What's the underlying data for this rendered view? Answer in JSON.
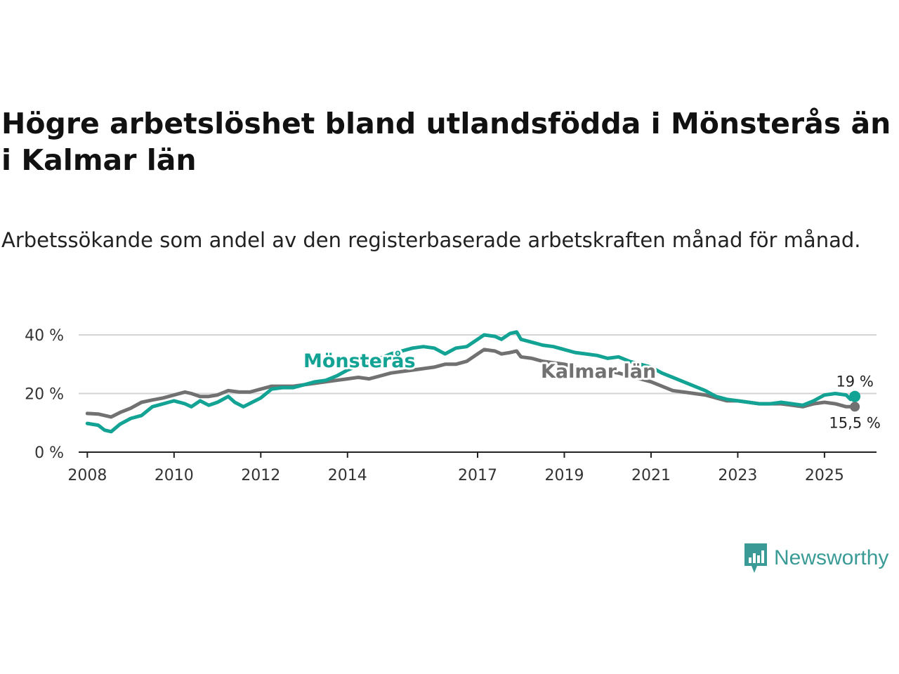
{
  "title": "Högre arbetslöshet bland utlandsfödda i Mönsterås än i Kalmar län",
  "subtitle": "Arbetssökande som andel av den registerbaserade arbetskraften månad för månad.",
  "brand": {
    "name": "Newsworthy",
    "color": "#3a9b96"
  },
  "chart_data": {
    "type": "line",
    "title": "Högre arbetslöshet bland utlandsfödda i Mönsterås än i Kalmar län",
    "xlabel": "",
    "ylabel": "",
    "xlim": [
      2007.8,
      2026.2
    ],
    "ylim": [
      0,
      40
    ],
    "yticks": [
      0,
      20,
      40
    ],
    "ytick_labels": [
      "0 %",
      "20 %",
      "40 %"
    ],
    "xticks": [
      2008,
      2010,
      2012,
      2014,
      2017,
      2019,
      2021,
      2023,
      2025
    ],
    "xtick_labels": [
      "2008",
      "2010",
      "2012",
      "2014",
      "2017",
      "2019",
      "2021",
      "2023",
      "2025"
    ],
    "grid": true,
    "series": [
      {
        "name": "Mönsterås",
        "color": "#13a394",
        "end_label": "19 %",
        "points": [
          [
            2008.0,
            9.8
          ],
          [
            2008.25,
            9.2
          ],
          [
            2008.4,
            7.5
          ],
          [
            2008.55,
            7.0
          ],
          [
            2008.75,
            9.5
          ],
          [
            2009.0,
            11.5
          ],
          [
            2009.25,
            12.5
          ],
          [
            2009.5,
            15.5
          ],
          [
            2009.75,
            16.5
          ],
          [
            2010.0,
            17.5
          ],
          [
            2010.25,
            16.5
          ],
          [
            2010.4,
            15.5
          ],
          [
            2010.6,
            17.5
          ],
          [
            2010.8,
            16.0
          ],
          [
            2011.0,
            17.0
          ],
          [
            2011.25,
            19.0
          ],
          [
            2011.4,
            17.0
          ],
          [
            2011.6,
            15.5
          ],
          [
            2011.8,
            17.0
          ],
          [
            2012.0,
            18.5
          ],
          [
            2012.25,
            21.5
          ],
          [
            2012.5,
            22.0
          ],
          [
            2012.75,
            22.0
          ],
          [
            2013.0,
            23.0
          ],
          [
            2013.25,
            24.0
          ],
          [
            2013.5,
            24.5
          ],
          [
            2013.75,
            26.0
          ],
          [
            2014.0,
            28.0
          ],
          [
            2014.25,
            29.5
          ],
          [
            2014.5,
            30.5
          ],
          [
            2014.75,
            32.0
          ],
          [
            2015.0,
            33.5
          ],
          [
            2015.25,
            34.5
          ],
          [
            2015.5,
            35.5
          ],
          [
            2015.75,
            36.0
          ],
          [
            2016.0,
            35.5
          ],
          [
            2016.25,
            33.5
          ],
          [
            2016.5,
            35.5
          ],
          [
            2016.75,
            36.0
          ],
          [
            2017.0,
            38.5
          ],
          [
            2017.15,
            40.0
          ],
          [
            2017.4,
            39.5
          ],
          [
            2017.55,
            38.5
          ],
          [
            2017.75,
            40.5
          ],
          [
            2017.9,
            41.0
          ],
          [
            2018.0,
            38.5
          ],
          [
            2018.25,
            37.5
          ],
          [
            2018.5,
            36.5
          ],
          [
            2018.75,
            36.0
          ],
          [
            2019.0,
            35.0
          ],
          [
            2019.25,
            34.0
          ],
          [
            2019.5,
            33.5
          ],
          [
            2019.75,
            33.0
          ],
          [
            2020.0,
            32.0
          ],
          [
            2020.25,
            32.5
          ],
          [
            2020.5,
            31.0
          ],
          [
            2020.75,
            30.0
          ],
          [
            2021.0,
            29.0
          ],
          [
            2021.25,
            27.0
          ],
          [
            2021.5,
            25.5
          ],
          [
            2021.75,
            24.0
          ],
          [
            2022.0,
            22.5
          ],
          [
            2022.25,
            21.0
          ],
          [
            2022.5,
            19.0
          ],
          [
            2022.75,
            18.0
          ],
          [
            2023.0,
            17.5
          ],
          [
            2023.25,
            17.0
          ],
          [
            2023.5,
            16.5
          ],
          [
            2023.75,
            16.5
          ],
          [
            2024.0,
            17.0
          ],
          [
            2024.25,
            16.5
          ],
          [
            2024.5,
            16.0
          ],
          [
            2024.75,
            17.5
          ],
          [
            2025.0,
            19.5
          ],
          [
            2025.25,
            20.0
          ],
          [
            2025.5,
            19.5
          ],
          [
            2025.6,
            18.0
          ],
          [
            2025.7,
            19.0
          ]
        ]
      },
      {
        "name": "Kalmar län",
        "color": "#717171",
        "end_label": "15,5 %",
        "points": [
          [
            2008.0,
            13.2
          ],
          [
            2008.25,
            13.0
          ],
          [
            2008.4,
            12.5
          ],
          [
            2008.55,
            12.0
          ],
          [
            2008.75,
            13.5
          ],
          [
            2009.0,
            15.0
          ],
          [
            2009.25,
            17.0
          ],
          [
            2009.5,
            17.8
          ],
          [
            2009.75,
            18.5
          ],
          [
            2010.0,
            19.5
          ],
          [
            2010.25,
            20.5
          ],
          [
            2010.4,
            20.0
          ],
          [
            2010.6,
            19.0
          ],
          [
            2010.8,
            19.0
          ],
          [
            2011.0,
            19.5
          ],
          [
            2011.25,
            21.0
          ],
          [
            2011.5,
            20.5
          ],
          [
            2011.75,
            20.5
          ],
          [
            2012.0,
            21.5
          ],
          [
            2012.25,
            22.5
          ],
          [
            2012.5,
            22.5
          ],
          [
            2012.75,
            22.5
          ],
          [
            2013.0,
            23.0
          ],
          [
            2013.25,
            23.5
          ],
          [
            2013.5,
            24.0
          ],
          [
            2013.75,
            24.5
          ],
          [
            2014.0,
            25.0
          ],
          [
            2014.25,
            25.5
          ],
          [
            2014.5,
            25.0
          ],
          [
            2014.75,
            26.0
          ],
          [
            2015.0,
            27.0
          ],
          [
            2015.25,
            27.5
          ],
          [
            2015.5,
            28.0
          ],
          [
            2015.75,
            28.5
          ],
          [
            2016.0,
            29.0
          ],
          [
            2016.25,
            30.0
          ],
          [
            2016.5,
            30.0
          ],
          [
            2016.75,
            31.0
          ],
          [
            2017.0,
            33.5
          ],
          [
            2017.15,
            35.0
          ],
          [
            2017.4,
            34.5
          ],
          [
            2017.55,
            33.5
          ],
          [
            2017.75,
            34.0
          ],
          [
            2017.9,
            34.5
          ],
          [
            2018.0,
            32.5
          ],
          [
            2018.25,
            32.0
          ],
          [
            2018.5,
            31.0
          ],
          [
            2018.75,
            30.5
          ],
          [
            2019.0,
            30.0
          ],
          [
            2019.25,
            29.0
          ],
          [
            2019.5,
            28.5
          ],
          [
            2019.75,
            28.0
          ],
          [
            2020.0,
            27.5
          ],
          [
            2020.25,
            27.0
          ],
          [
            2020.5,
            26.0
          ],
          [
            2020.75,
            25.0
          ],
          [
            2021.0,
            24.0
          ],
          [
            2021.25,
            22.5
          ],
          [
            2021.5,
            21.0
          ],
          [
            2021.75,
            20.5
          ],
          [
            2022.0,
            20.0
          ],
          [
            2022.25,
            19.5
          ],
          [
            2022.5,
            18.5
          ],
          [
            2022.75,
            17.5
          ],
          [
            2023.0,
            17.5
          ],
          [
            2023.25,
            17.0
          ],
          [
            2023.5,
            16.5
          ],
          [
            2023.75,
            16.5
          ],
          [
            2024.0,
            16.5
          ],
          [
            2024.25,
            16.0
          ],
          [
            2024.5,
            15.5
          ],
          [
            2024.75,
            16.5
          ],
          [
            2025.0,
            17.0
          ],
          [
            2025.25,
            16.5
          ],
          [
            2025.5,
            15.5
          ],
          [
            2025.7,
            15.5
          ]
        ]
      }
    ]
  }
}
